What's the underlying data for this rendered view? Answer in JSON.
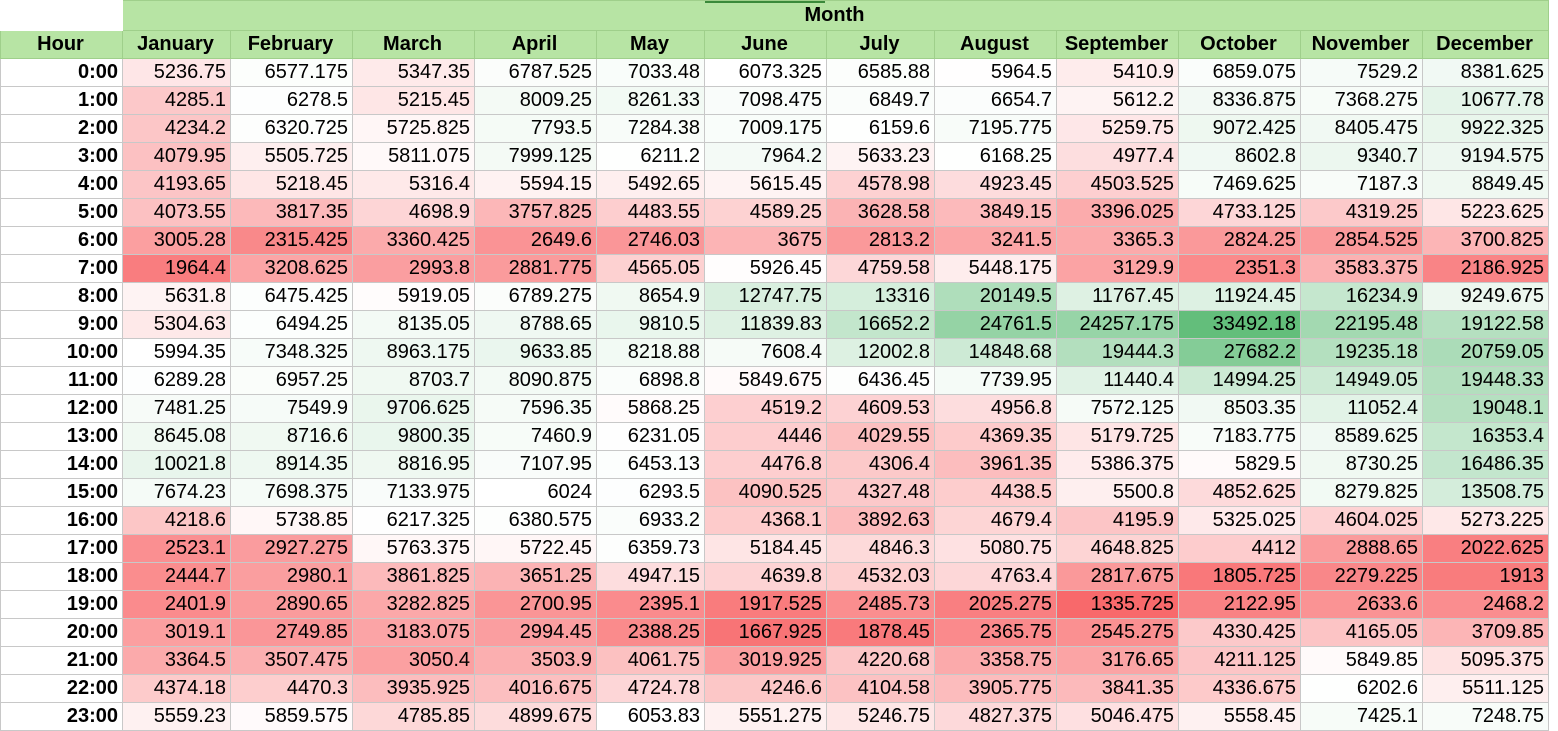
{
  "chart_data": {
    "type": "heatmap",
    "title": "",
    "column_group_label": "Month",
    "row_header_label": "Hour",
    "x": [
      "January",
      "February",
      "March",
      "April",
      "May",
      "June",
      "July",
      "August",
      "September",
      "October",
      "November",
      "December"
    ],
    "y": [
      "0:00",
      "1:00",
      "2:00",
      "3:00",
      "4:00",
      "5:00",
      "6:00",
      "7:00",
      "8:00",
      "9:00",
      "10:00",
      "11:00",
      "12:00",
      "13:00",
      "14:00",
      "15:00",
      "16:00",
      "17:00",
      "18:00",
      "19:00",
      "20:00",
      "21:00",
      "22:00",
      "23:00"
    ],
    "values": [
      [
        "5236.75",
        "6577.175",
        "5347.35",
        "6787.525",
        "7033.48",
        "6073.325",
        "6585.88",
        "5964.5",
        "5410.9",
        "6859.075",
        "7529.2",
        "8381.625"
      ],
      [
        "4285.1",
        "6278.5",
        "5215.45",
        "8009.25",
        "8261.33",
        "7098.475",
        "6849.7",
        "6654.7",
        "5612.2",
        "8336.875",
        "7368.275",
        "10677.78"
      ],
      [
        "4234.2",
        "6320.725",
        "5725.825",
        "7793.5",
        "7284.38",
        "7009.175",
        "6159.6",
        "7195.775",
        "5259.75",
        "9072.425",
        "8405.475",
        "9922.325"
      ],
      [
        "4079.95",
        "5505.725",
        "5811.075",
        "7999.125",
        "6211.2",
        "7964.2",
        "5633.23",
        "6168.25",
        "4977.4",
        "8602.8",
        "9340.7",
        "9194.575"
      ],
      [
        "4193.65",
        "5218.45",
        "5316.4",
        "5594.15",
        "5492.65",
        "5615.45",
        "4578.98",
        "4923.45",
        "4503.525",
        "7469.625",
        "7187.3",
        "8849.45"
      ],
      [
        "4073.55",
        "3817.35",
        "4698.9",
        "3757.825",
        "4483.55",
        "4589.25",
        "3628.58",
        "3849.15",
        "3396.025",
        "4733.125",
        "4319.25",
        "5223.625"
      ],
      [
        "3005.28",
        "2315.425",
        "3360.425",
        "2649.6",
        "2746.03",
        "3675",
        "2813.2",
        "3241.5",
        "3365.3",
        "2824.25",
        "2854.525",
        "3700.825"
      ],
      [
        "1964.4",
        "3208.625",
        "2993.8",
        "2881.775",
        "4565.05",
        "5926.45",
        "4759.58",
        "5448.175",
        "3129.9",
        "2351.3",
        "3583.375",
        "2186.925"
      ],
      [
        "5631.8",
        "6475.425",
        "5919.05",
        "6789.275",
        "8654.9",
        "12747.75",
        "13316",
        "20149.5",
        "11767.45",
        "11924.45",
        "16234.9",
        "9249.675"
      ],
      [
        "5304.63",
        "6494.25",
        "8135.05",
        "8788.65",
        "9810.5",
        "11839.83",
        "16652.2",
        "24761.5",
        "24257.175",
        "33492.18",
        "22195.48",
        "19122.58"
      ],
      [
        "5994.35",
        "7348.325",
        "8963.175",
        "9633.85",
        "8218.88",
        "7608.4",
        "12002.8",
        "14848.68",
        "19444.3",
        "27682.2",
        "19235.18",
        "20759.05"
      ],
      [
        "6289.28",
        "6957.25",
        "8703.7",
        "8090.875",
        "6898.8",
        "5849.675",
        "6436.45",
        "7739.95",
        "11440.4",
        "14994.25",
        "14949.05",
        "19448.33"
      ],
      [
        "7481.25",
        "7549.9",
        "9706.625",
        "7596.35",
        "5868.25",
        "4519.2",
        "4609.53",
        "4956.8",
        "7572.125",
        "8503.35",
        "11052.4",
        "19048.1"
      ],
      [
        "8645.08",
        "8716.6",
        "9800.35",
        "7460.9",
        "6231.05",
        "4446",
        "4029.55",
        "4369.35",
        "5179.725",
        "7183.775",
        "8589.625",
        "16353.4"
      ],
      [
        "10021.8",
        "8914.35",
        "8816.95",
        "7107.95",
        "6453.13",
        "4476.8",
        "4306.4",
        "3961.35",
        "5386.375",
        "5829.5",
        "8730.25",
        "16486.35"
      ],
      [
        "7674.23",
        "7698.375",
        "7133.975",
        "6024",
        "6293.5",
        "4090.525",
        "4327.48",
        "4438.5",
        "5500.8",
        "4852.625",
        "8279.825",
        "13508.75"
      ],
      [
        "4218.6",
        "5738.85",
        "6217.325",
        "6380.575",
        "6933.2",
        "4368.1",
        "3892.63",
        "4679.4",
        "4195.9",
        "5325.025",
        "4604.025",
        "5273.225"
      ],
      [
        "2523.1",
        "2927.275",
        "5763.375",
        "5722.45",
        "6359.73",
        "5184.45",
        "4846.3",
        "5080.75",
        "4648.825",
        "4412",
        "2888.65",
        "2022.625"
      ],
      [
        "2444.7",
        "2980.1",
        "3861.825",
        "3651.25",
        "4947.15",
        "4639.8",
        "4532.03",
        "4763.4",
        "2817.675",
        "1805.725",
        "2279.225",
        "1913"
      ],
      [
        "2401.9",
        "2890.65",
        "3282.825",
        "2700.95",
        "2395.1",
        "1917.525",
        "2485.73",
        "2025.275",
        "1335.725",
        "2122.95",
        "2633.6",
        "2468.2"
      ],
      [
        "3019.1",
        "2749.85",
        "3183.075",
        "2994.45",
        "2388.25",
        "1667.925",
        "1878.45",
        "2365.75",
        "2545.275",
        "4330.425",
        "4165.05",
        "3709.85"
      ],
      [
        "3364.5",
        "3507.475",
        "3050.4",
        "3503.9",
        "4061.75",
        "3019.925",
        "4220.68",
        "3358.75",
        "3176.65",
        "4211.125",
        "5849.85",
        "5095.375"
      ],
      [
        "4374.18",
        "4470.3",
        "3935.925",
        "4016.675",
        "4724.78",
        "4246.6",
        "4104.58",
        "3905.775",
        "3841.35",
        "4336.675",
        "6202.6",
        "5511.125"
      ],
      [
        "5559.23",
        "5859.575",
        "4785.85",
        "4899.675",
        "6053.83",
        "5551.275",
        "5246.75",
        "4827.375",
        "5046.475",
        "5558.45",
        "7425.1",
        "7248.75"
      ]
    ],
    "color_scale": {
      "low": "#f8696b",
      "mid": "#ffffff",
      "high": "#63be7b",
      "mid_value": 6000
    },
    "header_color": "#b7e4a4"
  }
}
